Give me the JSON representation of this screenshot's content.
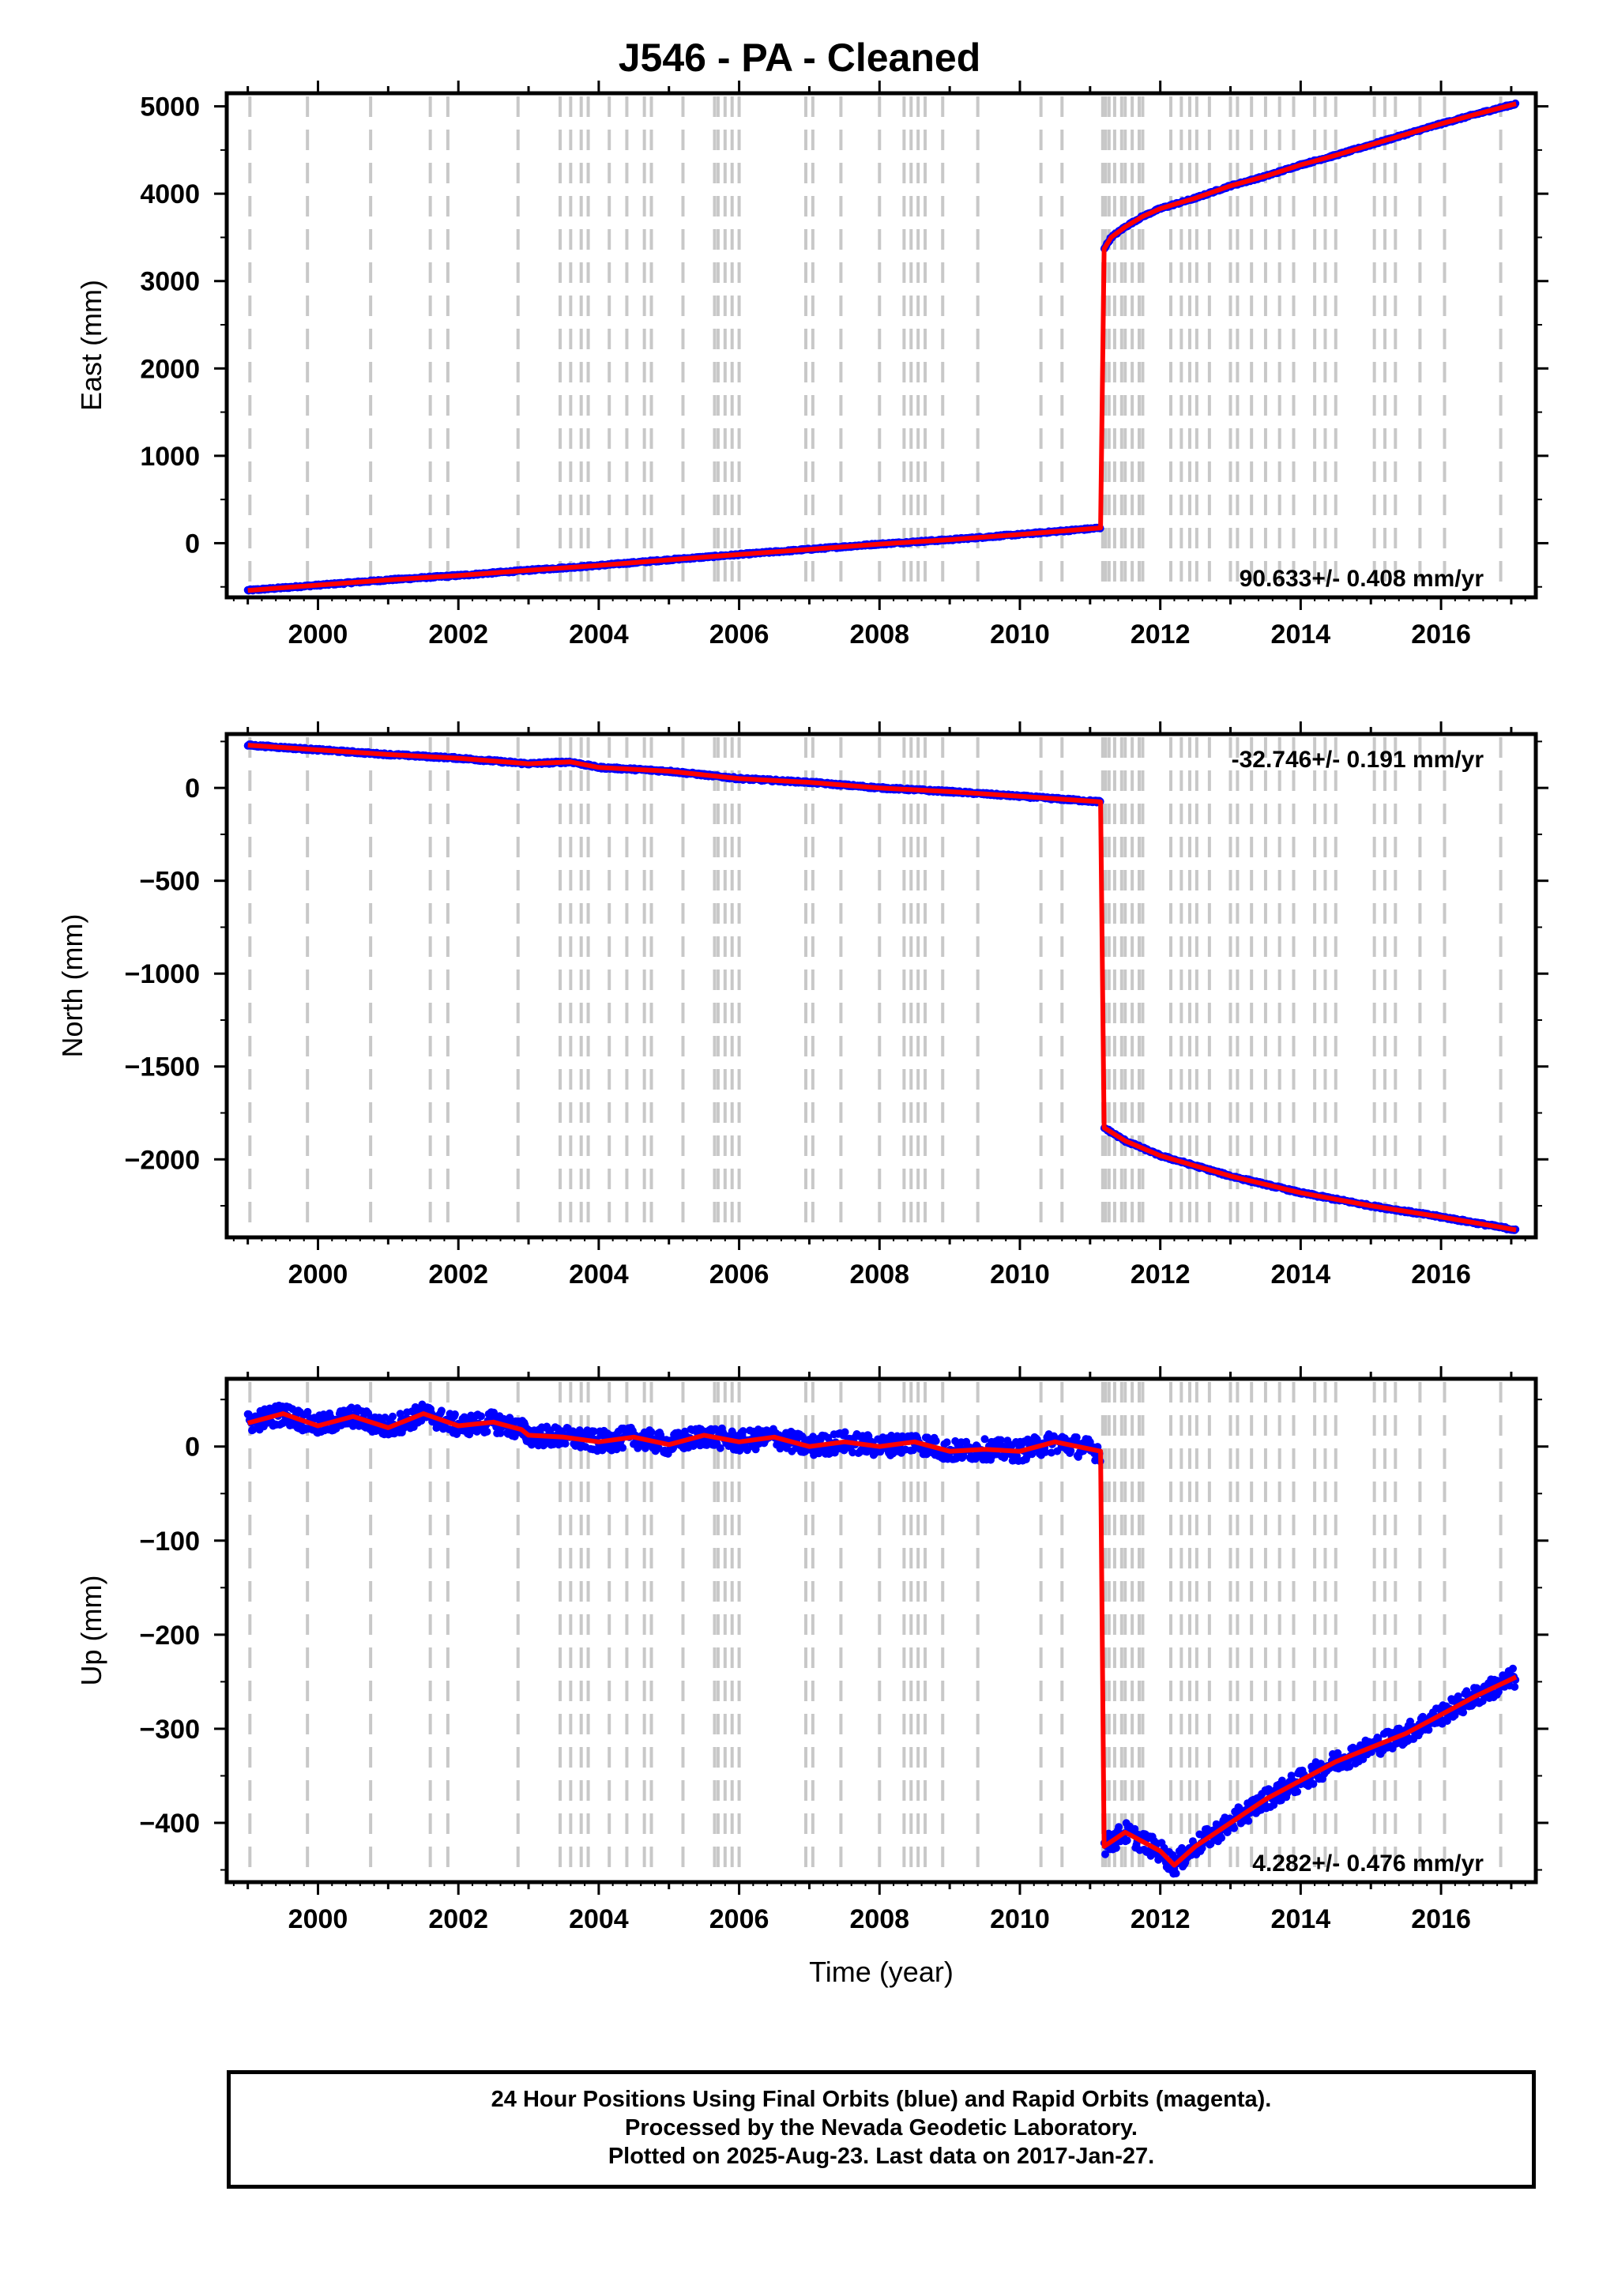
{
  "title": "J546  - PA - Cleaned",
  "footer": {
    "line1": "24 Hour Positions Using Final Orbits (blue) and Rapid Orbits (magenta).",
    "line2": "Processed by the Nevada Geodetic Laboratory.",
    "line3": "Plotted on 2025-Aug-23. Last data on 2017-Jan-27."
  },
  "colors": {
    "observations": "#0000ff",
    "model": "#ff0000",
    "event_lines": "#c8c8c8"
  },
  "xaxis": {
    "label": "Time (year)",
    "range": [
      1998.7,
      2017.35
    ],
    "ticks": [
      2000,
      2002,
      2004,
      2006,
      2008,
      2010,
      2012,
      2014,
      2016
    ]
  },
  "event_lines": [
    1999.03,
    1999.85,
    2000.75,
    2001.6,
    2001.85,
    2002.85,
    2003.45,
    2003.6,
    2003.75,
    2003.85,
    2004.15,
    2004.4,
    2004.65,
    2004.75,
    2005.2,
    2005.65,
    2005.7,
    2005.8,
    2005.9,
    2006.0,
    2006.95,
    2007.05,
    2007.45,
    2008.0,
    2008.35,
    2008.45,
    2008.55,
    2008.65,
    2008.9,
    2009.4,
    2010.3,
    2010.6,
    2011.18,
    2011.22,
    2011.27,
    2011.35,
    2011.45,
    2011.5,
    2011.6,
    2011.7,
    2011.75,
    2012.15,
    2012.3,
    2012.42,
    2012.52,
    2012.7,
    2013.0,
    2013.1,
    2013.3,
    2013.5,
    2013.7,
    2013.9,
    2014.2,
    2014.35,
    2014.5,
    2015.05,
    2015.2,
    2015.35,
    2015.7,
    2016.05,
    2016.85
  ],
  "chart_data": [
    {
      "type": "line",
      "title": "J546  - PA - Cleaned",
      "xlabel": "",
      "ylabel": "East (mm)",
      "ylim": [
        -620,
        5150
      ],
      "yticks": [
        0,
        1000,
        2000,
        3000,
        4000,
        5000
      ],
      "rate": "90.633+/- 0.408 mm/yr",
      "series": [
        {
          "name": "Final Orbits",
          "values": [
            [
              1999.0,
              -540
            ],
            [
              2000.0,
              -480
            ],
            [
              2001.0,
              -420
            ],
            [
              2002.0,
              -370
            ],
            [
              2003.0,
              -310
            ],
            [
              2004.0,
              -255
            ],
            [
              2005.0,
              -190
            ],
            [
              2006.0,
              -130
            ],
            [
              2007.0,
              -70
            ],
            [
              2008.0,
              -10
            ],
            [
              2009.0,
              40
            ],
            [
              2010.0,
              100
            ],
            [
              2011.15,
              175
            ],
            [
              2011.2,
              3370
            ],
            [
              2011.3,
              3500
            ],
            [
              2011.5,
              3620
            ],
            [
              2011.75,
              3740
            ],
            [
              2012.0,
              3830
            ],
            [
              2012.5,
              3950
            ],
            [
              2013.0,
              4090
            ],
            [
              2013.5,
              4200
            ],
            [
              2014.0,
              4330
            ],
            [
              2014.5,
              4440
            ],
            [
              2015.0,
              4560
            ],
            [
              2015.5,
              4680
            ],
            [
              2016.0,
              4800
            ],
            [
              2016.5,
              4910
            ],
            [
              2017.07,
              5030
            ]
          ]
        }
      ]
    },
    {
      "type": "line",
      "xlabel": "",
      "ylabel": "North (mm)",
      "ylim": [
        -2420,
        290
      ],
      "yticks": [
        0,
        -500,
        -1000,
        -1500,
        -2000
      ],
      "rate": "-32.746+/- 0.191 mm/yr",
      "series": [
        {
          "name": "Final Orbits",
          "values": [
            [
              1999.0,
              230
            ],
            [
              2000.0,
              205
            ],
            [
              2001.0,
              180
            ],
            [
              2002.0,
              160
            ],
            [
              2003.0,
              130
            ],
            [
              2003.6,
              140
            ],
            [
              2004.0,
              110
            ],
            [
              2005.0,
              90
            ],
            [
              2006.0,
              50
            ],
            [
              2007.0,
              30
            ],
            [
              2008.0,
              0
            ],
            [
              2009.0,
              -20
            ],
            [
              2010.0,
              -45
            ],
            [
              2011.15,
              -75
            ],
            [
              2011.2,
              -1830
            ],
            [
              2011.5,
              -1900
            ],
            [
              2012.0,
              -1980
            ],
            [
              2013.0,
              -2090
            ],
            [
              2014.0,
              -2180
            ],
            [
              2015.0,
              -2250
            ],
            [
              2016.0,
              -2310
            ],
            [
              2017.07,
              -2380
            ]
          ]
        }
      ]
    },
    {
      "type": "scatter",
      "xlabel": "Time (year)",
      "ylabel": "Up (mm)",
      "ylim": [
        -463,
        72
      ],
      "yticks": [
        0,
        -100,
        -200,
        -300,
        -400
      ],
      "rate": "4.282+/- 0.476 mm/yr",
      "series": [
        {
          "name": "Final Orbits",
          "values": [
            [
              1999.0,
              25
            ],
            [
              1999.5,
              35
            ],
            [
              2000.0,
              22
            ],
            [
              2000.5,
              32
            ],
            [
              2001.0,
              20
            ],
            [
              2001.5,
              35
            ],
            [
              2002.0,
              22
            ],
            [
              2002.5,
              26
            ],
            [
              2002.9,
              18
            ],
            [
              2003.0,
              12
            ],
            [
              2003.5,
              10
            ],
            [
              2004.0,
              5
            ],
            [
              2004.5,
              10
            ],
            [
              2005.0,
              2
            ],
            [
              2005.5,
              12
            ],
            [
              2006.0,
              5
            ],
            [
              2006.5,
              10
            ],
            [
              2007.0,
              0
            ],
            [
              2007.5,
              5
            ],
            [
              2008.0,
              0
            ],
            [
              2008.5,
              5
            ],
            [
              2009.0,
              -5
            ],
            [
              2009.5,
              -3
            ],
            [
              2010.0,
              -5
            ],
            [
              2010.5,
              5
            ],
            [
              2011.15,
              -5
            ],
            [
              2011.2,
              -425
            ],
            [
              2011.5,
              -410
            ],
            [
              2011.75,
              -420
            ],
            [
              2012.0,
              -430
            ],
            [
              2012.2,
              -445
            ],
            [
              2012.5,
              -425
            ],
            [
              2013.0,
              -400
            ],
            [
              2013.5,
              -375
            ],
            [
              2014.0,
              -355
            ],
            [
              2014.5,
              -335
            ],
            [
              2015.0,
              -320
            ],
            [
              2015.5,
              -305
            ],
            [
              2016.0,
              -285
            ],
            [
              2016.5,
              -265
            ],
            [
              2017.07,
              -245
            ]
          ]
        }
      ]
    }
  ]
}
